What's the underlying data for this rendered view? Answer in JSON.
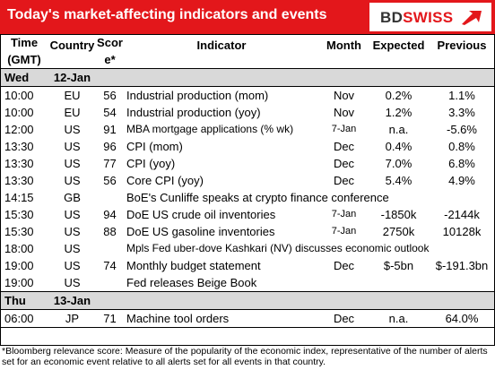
{
  "header": {
    "title": "Today's market-affecting indicators and events",
    "logo_prefix": "BD",
    "logo_suffix": "SWISS"
  },
  "columns": {
    "time": "Time (GMT)",
    "country": "Country",
    "score": "Score*",
    "indicator": "Indicator",
    "month": "Month",
    "expected": "Expected",
    "previous": "Previous"
  },
  "days": [
    {
      "weekday": "Wed",
      "date": "12-Jan",
      "rows": [
        {
          "time": "10:00",
          "country": "EU",
          "score": "56",
          "indicator": "Industrial production (mom)",
          "month": "Nov",
          "expected": "0.2%",
          "previous": "1.1%"
        },
        {
          "time": "10:00",
          "country": "EU",
          "score": "54",
          "indicator": "Industrial production (yoy)",
          "month": "Nov",
          "expected": "1.2%",
          "previous": "3.3%"
        },
        {
          "time": "12:00",
          "country": "US",
          "score": "91",
          "indicator": "MBA mortgage applications (% wk)",
          "month": "7-Jan",
          "expected": "n.a.",
          "previous": "-5.6%"
        },
        {
          "time": "13:30",
          "country": "US",
          "score": "96",
          "indicator": "CPI (mom)",
          "month": "Dec",
          "expected": "0.4%",
          "previous": "0.8%"
        },
        {
          "time": "13:30",
          "country": "US",
          "score": "77",
          "indicator": "CPI (yoy)",
          "month": "Dec",
          "expected": "7.0%",
          "previous": "6.8%"
        },
        {
          "time": "13:30",
          "country": "US",
          "score": "56",
          "indicator": "Core CPI (yoy)",
          "month": "Dec",
          "expected": "5.4%",
          "previous": "4.9%"
        },
        {
          "time": "14:15",
          "country": "GB",
          "score": "",
          "indicator": "BoE's Cunliffe speaks at crypto finance conference",
          "month": "",
          "expected": "",
          "previous": ""
        },
        {
          "time": "15:30",
          "country": "US",
          "score": "94",
          "indicator": "DoE US crude oil inventories",
          "month": "7-Jan",
          "expected": "-1850k",
          "previous": "-2144k"
        },
        {
          "time": "15:30",
          "country": "US",
          "score": "88",
          "indicator": "DoE US gasoline inventories",
          "month": "7-Jan",
          "expected": "2750k",
          "previous": "10128k"
        },
        {
          "time": "18:00",
          "country": "US",
          "score": "",
          "indicator": "Mpls Fed uber-dove Kashkari (NV) discusses economic outlook",
          "month": "",
          "expected": "",
          "previous": ""
        },
        {
          "time": "19:00",
          "country": "US",
          "score": "74",
          "indicator": "Monthly budget statement",
          "month": "Dec",
          "expected": "$-5bn",
          "previous": "$-191.3bn"
        },
        {
          "time": "19:00",
          "country": "US",
          "score": "",
          "indicator": "Fed releases Beige Book",
          "month": "",
          "expected": "",
          "previous": ""
        }
      ]
    },
    {
      "weekday": "Thu",
      "date": "13-Jan",
      "rows": [
        {
          "time": "06:00",
          "country": "JP",
          "score": "71",
          "indicator": "Machine tool orders",
          "month": "Dec",
          "expected": "n.a.",
          "previous": "64.0%"
        }
      ]
    }
  ],
  "footnote": "*Bloomberg relevance score:  Measure of the popularity of the economic index, representative of the number of alerts set for an economic event relative to all alerts set for all events in that country."
}
